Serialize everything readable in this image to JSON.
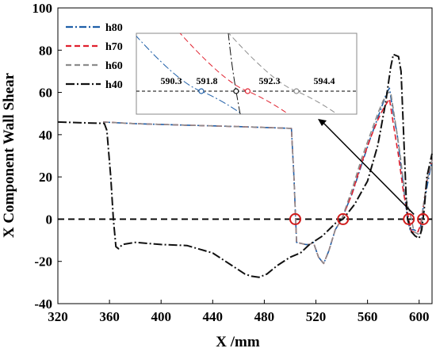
{
  "chart_data": {
    "type": "line",
    "title": "",
    "xlabel": "X /mm",
    "ylabel": "X Component Wall Shear",
    "xlim": [
      320,
      610
    ],
    "ylim": [
      -40,
      100
    ],
    "x_ticks": [
      "320",
      "360",
      "400",
      "440",
      "480",
      "520",
      "560",
      "600"
    ],
    "y_ticks": [
      "-40",
      "-20",
      "0",
      "20",
      "40",
      "60",
      "80",
      "100"
    ],
    "grid": false,
    "legend": "top-left",
    "reference_line": {
      "y": 0,
      "style": "dashed",
      "color": "#000000"
    },
    "series": [
      {
        "name": "h80",
        "color": "#1f5fa8",
        "dash": "9,3,2,3",
        "width": 1.6,
        "points": [
          [
            355,
            46
          ],
          [
            380,
            45.2
          ],
          [
            420,
            44.5
          ],
          [
            460,
            43.8
          ],
          [
            490,
            43.2
          ],
          [
            501,
            43
          ],
          [
            503,
            20
          ],
          [
            505,
            -11
          ],
          [
            512,
            -12
          ],
          [
            515,
            -12
          ],
          [
            518,
            -11
          ],
          [
            522,
            -18
          ],
          [
            526,
            -21
          ],
          [
            530,
            -15
          ],
          [
            535,
            -5
          ],
          [
            540,
            0
          ],
          [
            548,
            12
          ],
          [
            555,
            25
          ],
          [
            562,
            38
          ],
          [
            568,
            48
          ],
          [
            572,
            55
          ],
          [
            575,
            60
          ],
          [
            577,
            62
          ],
          [
            580,
            50
          ],
          [
            583,
            40
          ],
          [
            586,
            25
          ],
          [
            589,
            10
          ],
          [
            591,
            0
          ],
          [
            593,
            -5
          ],
          [
            596,
            -5
          ],
          [
            599,
            -6
          ],
          [
            601,
            -4
          ],
          [
            603,
            5
          ],
          [
            606,
            15
          ],
          [
            610,
            28
          ]
        ]
      },
      {
        "name": "h70",
        "color": "#e0202e",
        "dash": "7,4",
        "width": 1.6,
        "points": [
          [
            355,
            46
          ],
          [
            380,
            45.2
          ],
          [
            420,
            44.5
          ],
          [
            460,
            43.8
          ],
          [
            490,
            43.2
          ],
          [
            501,
            43
          ],
          [
            503,
            20
          ],
          [
            505,
            -11
          ],
          [
            512,
            -12
          ],
          [
            515,
            -12
          ],
          [
            518,
            -11
          ],
          [
            522,
            -18
          ],
          [
            526,
            -21
          ],
          [
            530,
            -15
          ],
          [
            535,
            -5
          ],
          [
            540,
            0
          ],
          [
            548,
            12
          ],
          [
            555,
            26
          ],
          [
            562,
            38
          ],
          [
            568,
            47
          ],
          [
            572,
            52
          ],
          [
            576,
            56
          ],
          [
            577,
            57
          ],
          [
            580,
            45
          ],
          [
            584,
            30
          ],
          [
            588,
            12
          ],
          [
            592,
            0
          ],
          [
            594,
            -6
          ],
          [
            597,
            -6
          ],
          [
            599,
            -6
          ],
          [
            601,
            -3
          ],
          [
            603,
            5
          ],
          [
            606,
            18
          ],
          [
            610,
            28
          ]
        ]
      },
      {
        "name": "h60",
        "color": "#8c8c8c",
        "dash": "7,4",
        "width": 1.6,
        "points": [
          [
            355,
            46
          ],
          [
            380,
            45.2
          ],
          [
            420,
            44.5
          ],
          [
            460,
            43.8
          ],
          [
            490,
            43.2
          ],
          [
            501,
            43
          ],
          [
            503,
            20
          ],
          [
            505,
            -11
          ],
          [
            512,
            -12
          ],
          [
            515,
            -12
          ],
          [
            518,
            -11
          ],
          [
            522,
            -18
          ],
          [
            526,
            -21
          ],
          [
            530,
            -15
          ],
          [
            535,
            -5
          ],
          [
            540,
            0
          ],
          [
            548,
            14
          ],
          [
            555,
            28
          ],
          [
            562,
            40
          ],
          [
            568,
            50
          ],
          [
            572,
            56
          ],
          [
            576,
            60
          ],
          [
            578,
            60
          ],
          [
            581,
            48
          ],
          [
            585,
            32
          ],
          [
            589,
            12
          ],
          [
            594,
            0
          ],
          [
            596,
            -6
          ],
          [
            599,
            -7
          ],
          [
            601,
            -7
          ],
          [
            603,
            5
          ],
          [
            606,
            18
          ],
          [
            610,
            28
          ]
        ]
      },
      {
        "name": "h40",
        "color": "#111111",
        "dash": "11,3,2,3",
        "width": 2.0,
        "points": [
          [
            320,
            46
          ],
          [
            340,
            45.6
          ],
          [
            356,
            45.3
          ],
          [
            358,
            42
          ],
          [
            361,
            20
          ],
          [
            363,
            0
          ],
          [
            365,
            -13
          ],
          [
            367,
            -14
          ],
          [
            370,
            -12
          ],
          [
            380,
            -11
          ],
          [
            400,
            -12
          ],
          [
            420,
            -12.5
          ],
          [
            440,
            -16
          ],
          [
            455,
            -22
          ],
          [
            465,
            -26
          ],
          [
            470,
            -27
          ],
          [
            476,
            -27.5
          ],
          [
            482,
            -26
          ],
          [
            490,
            -22
          ],
          [
            500,
            -18
          ],
          [
            508,
            -16
          ],
          [
            515,
            -12
          ],
          [
            525,
            -8
          ],
          [
            535,
            -2
          ],
          [
            541,
            0
          ],
          [
            550,
            7
          ],
          [
            560,
            18
          ],
          [
            568,
            35
          ],
          [
            574,
            55
          ],
          [
            578,
            72
          ],
          [
            580,
            78
          ],
          [
            584,
            77
          ],
          [
            586,
            70
          ],
          [
            588,
            40
          ],
          [
            590,
            10
          ],
          [
            591,
            0
          ],
          [
            594,
            -6
          ],
          [
            597,
            -8
          ],
          [
            600,
            -9
          ],
          [
            602,
            -5
          ],
          [
            604,
            5
          ],
          [
            606,
            20
          ],
          [
            610,
            31
          ]
        ]
      }
    ],
    "markers": {
      "shape": "circle",
      "color": "#d01c1c",
      "points": [
        [
          504,
          0
        ],
        [
          541,
          0
        ],
        [
          592,
          0
        ],
        [
          603,
          0
        ]
      ]
    },
    "annotation_arrow": {
      "from_xy": [
        596,
        0
      ],
      "color": "#000000"
    },
    "inset": {
      "reference_line": "dashed horizontal",
      "labels": [
        "590.3",
        "591.8",
        "592.3",
        "594.4"
      ],
      "crossings": [
        {
          "x": 590.3,
          "series": "h80",
          "color": "#1f5fa8"
        },
        {
          "x": 591.8,
          "series": "h40",
          "color": "#111111"
        },
        {
          "x": 592.3,
          "series": "h70",
          "color": "#e0202e"
        },
        {
          "x": 594.4,
          "series": "h60",
          "color": "#8c8c8c"
        }
      ]
    }
  }
}
